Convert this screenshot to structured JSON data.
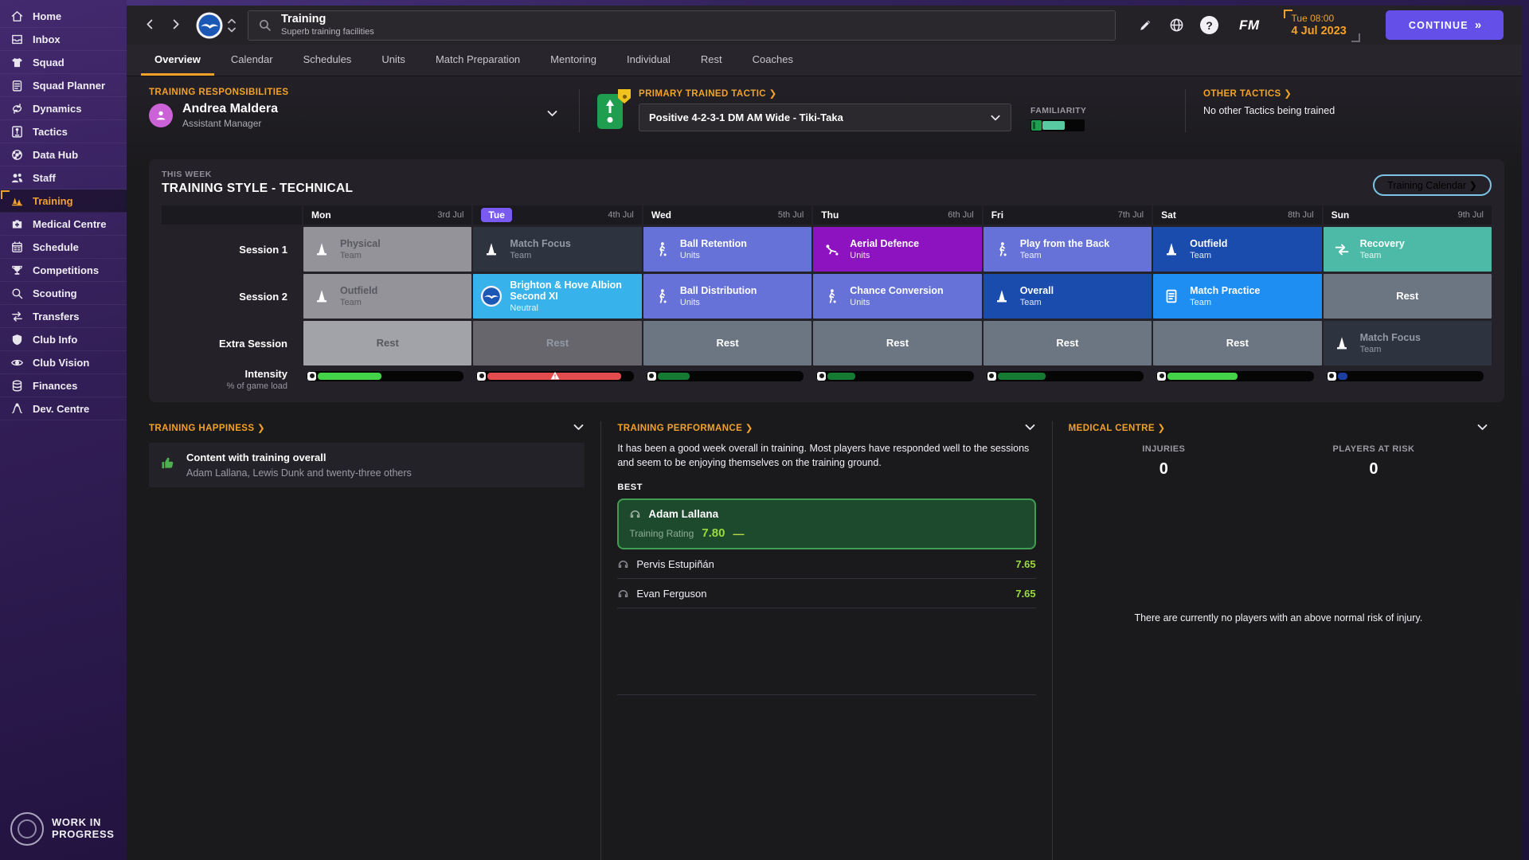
{
  "colors": {
    "accent_orange": "#f2a22b",
    "continue_purple": "#6450e8",
    "today_badge": "#7a5bf2",
    "grey_past": "#939399",
    "grey_light_rest": "#a2a2a9",
    "grey_dark_rest": "#66666c",
    "navy_dark": "#2d333f",
    "periwinkle": "#6672d8",
    "purple_vivid": "#8d13c0",
    "royal_blue": "#1a4cae",
    "teal": "#4cbaa6",
    "sky_blue": "#38b2ea",
    "bright_blue": "#1e8ef2",
    "slate": "#6b7682",
    "bar_bright_green": "#44d348",
    "bar_dark_green": "#157a32",
    "bar_red": "#e34c4c",
    "bar_blue": "#1b3fa0",
    "familiarity_teal": "#58c9a0",
    "rating_green": "#9adb3f",
    "best_card_bg": "#1d4a2c",
    "best_card_border": "#3f9e52",
    "thumb_green": "#4caf50"
  },
  "sidebar": {
    "items": [
      {
        "label": "Home",
        "icon": "home",
        "active": false
      },
      {
        "label": "Inbox",
        "icon": "inbox",
        "active": false
      },
      {
        "label": "Squad",
        "icon": "shirt",
        "active": false
      },
      {
        "label": "Squad Planner",
        "icon": "clipboard",
        "active": false
      },
      {
        "label": "Dynamics",
        "icon": "dynamics",
        "active": false
      },
      {
        "label": "Tactics",
        "icon": "tactics",
        "active": false
      },
      {
        "label": "Data Hub",
        "icon": "datahub",
        "active": false
      },
      {
        "label": "Staff",
        "icon": "staff",
        "active": false
      },
      {
        "label": "Training",
        "icon": "training",
        "active": true
      },
      {
        "label": "Medical Centre",
        "icon": "medical",
        "active": false
      },
      {
        "label": "Schedule",
        "icon": "schedule",
        "active": false
      },
      {
        "label": "Competitions",
        "icon": "trophy",
        "active": false
      },
      {
        "label": "Scouting",
        "icon": "search",
        "active": false
      },
      {
        "label": "Transfers",
        "icon": "transfers",
        "active": false
      },
      {
        "label": "Club Info",
        "icon": "shield-ic",
        "active": false
      },
      {
        "label": "Club Vision",
        "icon": "vision",
        "active": false
      },
      {
        "label": "Finances",
        "icon": "finances",
        "active": false
      },
      {
        "label": "Dev. Centre",
        "icon": "devcentre",
        "active": false
      }
    ],
    "footer": {
      "line1": "WORK IN",
      "line2": "PROGRESS"
    }
  },
  "topbar": {
    "title": "Training",
    "subtitle": "Superb training facilities",
    "time": "Tue 08:00",
    "date": "4 Jul 2023",
    "fm_logo": "FM",
    "continue_label": "CONTINUE",
    "continue_chevrons": "»"
  },
  "tabs": [
    {
      "label": "Overview",
      "active": true
    },
    {
      "label": "Calendar",
      "active": false
    },
    {
      "label": "Schedules",
      "active": false
    },
    {
      "label": "Units",
      "active": false
    },
    {
      "label": "Match Preparation",
      "active": false
    },
    {
      "label": "Mentoring",
      "active": false
    },
    {
      "label": "Individual",
      "active": false
    },
    {
      "label": "Rest",
      "active": false
    },
    {
      "label": "Coaches",
      "active": false
    }
  ],
  "responsibilities": {
    "header": "TRAINING RESPONSIBILITIES",
    "name": "Andrea Maldera",
    "role": "Assistant Manager"
  },
  "primary_tactic": {
    "header": "PRIMARY TRAINED TACTIC ❯",
    "value": "Positive 4-2-3-1 DM AM Wide - Tiki-Taka",
    "familiarity_label": "FAMILIARITY",
    "familiarity_pct": 42
  },
  "other_tactics": {
    "header": "OTHER TACTICS ❯",
    "text": "No other Tactics being trained"
  },
  "week": {
    "panel_label": "THIS WEEK",
    "panel_title": "TRAINING STYLE - TECHNICAL",
    "calendar_button": "Training Calendar ❯",
    "days": [
      {
        "name": "Mon",
        "date": "3rd Jul",
        "today": false
      },
      {
        "name": "Tue",
        "date": "4th Jul",
        "today": true
      },
      {
        "name": "Wed",
        "date": "5th Jul",
        "today": false
      },
      {
        "name": "Thu",
        "date": "6th Jul",
        "today": false
      },
      {
        "name": "Fri",
        "date": "7th Jul",
        "today": false
      },
      {
        "name": "Sat",
        "date": "8th Jul",
        "today": false
      },
      {
        "name": "Sun",
        "date": "9th Jul",
        "today": false
      }
    ],
    "rows": [
      {
        "label": "Session 1",
        "cells": [
          {
            "title": "Physical",
            "sub": "Team",
            "icon": "cone",
            "bg": "grey_past",
            "mute": "muted-dark"
          },
          {
            "title": "Match Focus",
            "sub": "Team",
            "icon": "cone",
            "bg": "navy_dark",
            "mute": "muted-light"
          },
          {
            "title": "Ball Retention",
            "sub": "Units",
            "icon": "player",
            "bg": "periwinkle"
          },
          {
            "title": "Aerial Defence",
            "sub": "Units",
            "icon": "player-slide",
            "bg": "purple_vivid"
          },
          {
            "title": "Play from the Back",
            "sub": "Team",
            "icon": "player",
            "bg": "periwinkle"
          },
          {
            "title": "Outfield",
            "sub": "Team",
            "icon": "cone",
            "bg": "royal_blue"
          },
          {
            "title": "Recovery",
            "sub": "Team",
            "icon": "recovery",
            "bg": "teal"
          }
        ]
      },
      {
        "label": "Session 2",
        "cells": [
          {
            "title": "Outfield",
            "sub": "Team",
            "icon": "cone",
            "bg": "grey_past",
            "mute": "muted-dark"
          },
          {
            "title": "Brighton & Hove Albion Second XI",
            "sub": "Neutral",
            "icon": "club",
            "bg": "sky_blue"
          },
          {
            "title": "Ball Distribution",
            "sub": "Units",
            "icon": "player",
            "bg": "periwinkle"
          },
          {
            "title": "Chance Conversion",
            "sub": "Units",
            "icon": "player",
            "bg": "periwinkle"
          },
          {
            "title": "Overall",
            "sub": "Team",
            "icon": "cone",
            "bg": "royal_blue"
          },
          {
            "title": "Match Practice",
            "sub": "Team",
            "icon": "board",
            "bg": "bright_blue"
          },
          {
            "title": "Rest",
            "rest": true,
            "bg": "slate"
          }
        ]
      },
      {
        "label": "Extra Session",
        "cells": [
          {
            "title": "Rest",
            "rest": true,
            "bg": "grey_light_rest",
            "mute": "muted-dark"
          },
          {
            "title": "Rest",
            "rest": true,
            "bg": "grey_dark_rest",
            "mute": "muted-light"
          },
          {
            "title": "Rest",
            "rest": true,
            "bg": "slate"
          },
          {
            "title": "Rest",
            "rest": true,
            "bg": "slate"
          },
          {
            "title": "Rest",
            "rest": true,
            "bg": "slate"
          },
          {
            "title": "Rest",
            "rest": true,
            "bg": "slate"
          },
          {
            "title": "Match Focus",
            "sub": "Team",
            "icon": "cone",
            "bg": "navy_dark",
            "mute": "muted-light"
          }
        ]
      }
    ],
    "intensity": {
      "label": "Intensity",
      "sublabel": "% of game load",
      "bars": [
        {
          "pct": 44,
          "color": "bar_bright_green",
          "warning": false
        },
        {
          "pct": 92,
          "color": "bar_red",
          "warning": true
        },
        {
          "pct": 22,
          "color": "bar_dark_green",
          "warning": false
        },
        {
          "pct": 19,
          "color": "bar_dark_green",
          "warning": false
        },
        {
          "pct": 33,
          "color": "bar_dark_green",
          "warning": false
        },
        {
          "pct": 48,
          "color": "bar_bright_green",
          "warning": false
        },
        {
          "pct": 7,
          "color": "bar_blue",
          "warning": false
        }
      ]
    }
  },
  "happiness": {
    "header": "TRAINING HAPPINESS ❯",
    "item_title": "Content with training overall",
    "item_sub": "Adam Lallana, Lewis Dunk and twenty-three others"
  },
  "performance": {
    "header": "TRAINING PERFORMANCE ❯",
    "summary": "It has been a good week overall in training. Most players have responded well to the sessions and seem to be enjoying themselves on the training ground.",
    "best_label": "BEST",
    "best": {
      "name": "Adam Lallana",
      "rating_label": "Training Rating",
      "rating": "7.80",
      "trend": "—"
    },
    "others": [
      {
        "name": "Pervis Estupiñán",
        "rating": "7.65"
      },
      {
        "name": "Evan Ferguson",
        "rating": "7.65"
      }
    ]
  },
  "medical": {
    "header": "MEDICAL CENTRE ❯",
    "stats": [
      {
        "label": "INJURIES",
        "value": "0"
      },
      {
        "label": "PLAYERS AT RISK",
        "value": "0"
      }
    ],
    "note": "There are currently no players with an above normal risk of injury."
  }
}
